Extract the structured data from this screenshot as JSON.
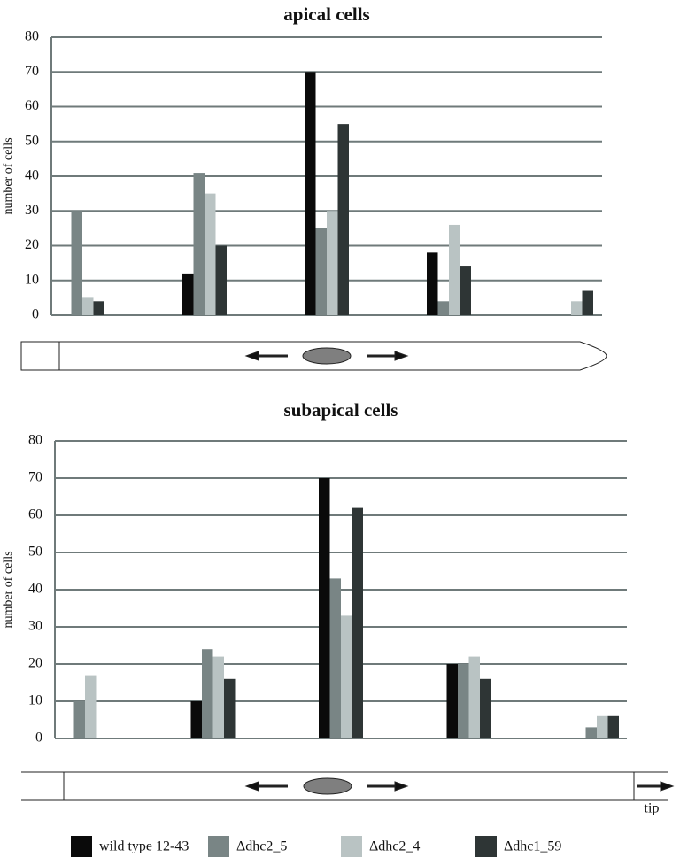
{
  "chart_data": [
    {
      "type": "bar",
      "title": "apical cells",
      "y_label": "number of cells",
      "categories": [
        null,
        null,
        null,
        null,
        null
      ],
      "series": [
        {
          "name": "wild type 12-43",
          "color": "#0a0a0a",
          "values": [
            0,
            12,
            70,
            18,
            0
          ]
        },
        {
          "name": "Δdhc2_5",
          "color": "#798585",
          "values": [
            30,
            41,
            25,
            4,
            0
          ]
        },
        {
          "name": "Δdhc2_4",
          "color": "#b9c3c3",
          "values": [
            5,
            35,
            30,
            26,
            4
          ]
        },
        {
          "name": "Δdhc1_59",
          "color": "#2e3535",
          "values": [
            4,
            20,
            55,
            14,
            7
          ]
        }
      ],
      "ylim": [
        0,
        80
      ],
      "yticks": [
        0,
        10,
        20,
        30,
        40,
        50,
        60,
        70,
        80
      ],
      "grid": true
    },
    {
      "type": "bar",
      "title": "subapical cells",
      "y_label": "number of cells",
      "annotation": "tip",
      "categories": [
        null,
        null,
        null,
        null,
        null
      ],
      "series": [
        {
          "name": "wild type 12-43",
          "color": "#0a0a0a",
          "values": [
            0,
            10,
            70,
            20,
            0
          ]
        },
        {
          "name": "Δdhc2_5",
          "color": "#798585",
          "values": [
            10,
            24,
            43,
            20,
            3
          ]
        },
        {
          "name": "Δdhc2_4",
          "color": "#b9c3c3",
          "values": [
            17,
            22,
            33,
            22,
            6
          ]
        },
        {
          "name": "Δdhc1_59",
          "color": "#2e3535",
          "values": [
            0,
            16,
            62,
            16,
            6
          ]
        }
      ],
      "ylim": [
        0,
        80
      ],
      "yticks": [
        0,
        10,
        20,
        30,
        40,
        50,
        60,
        70,
        80
      ],
      "grid": true
    }
  ]
}
